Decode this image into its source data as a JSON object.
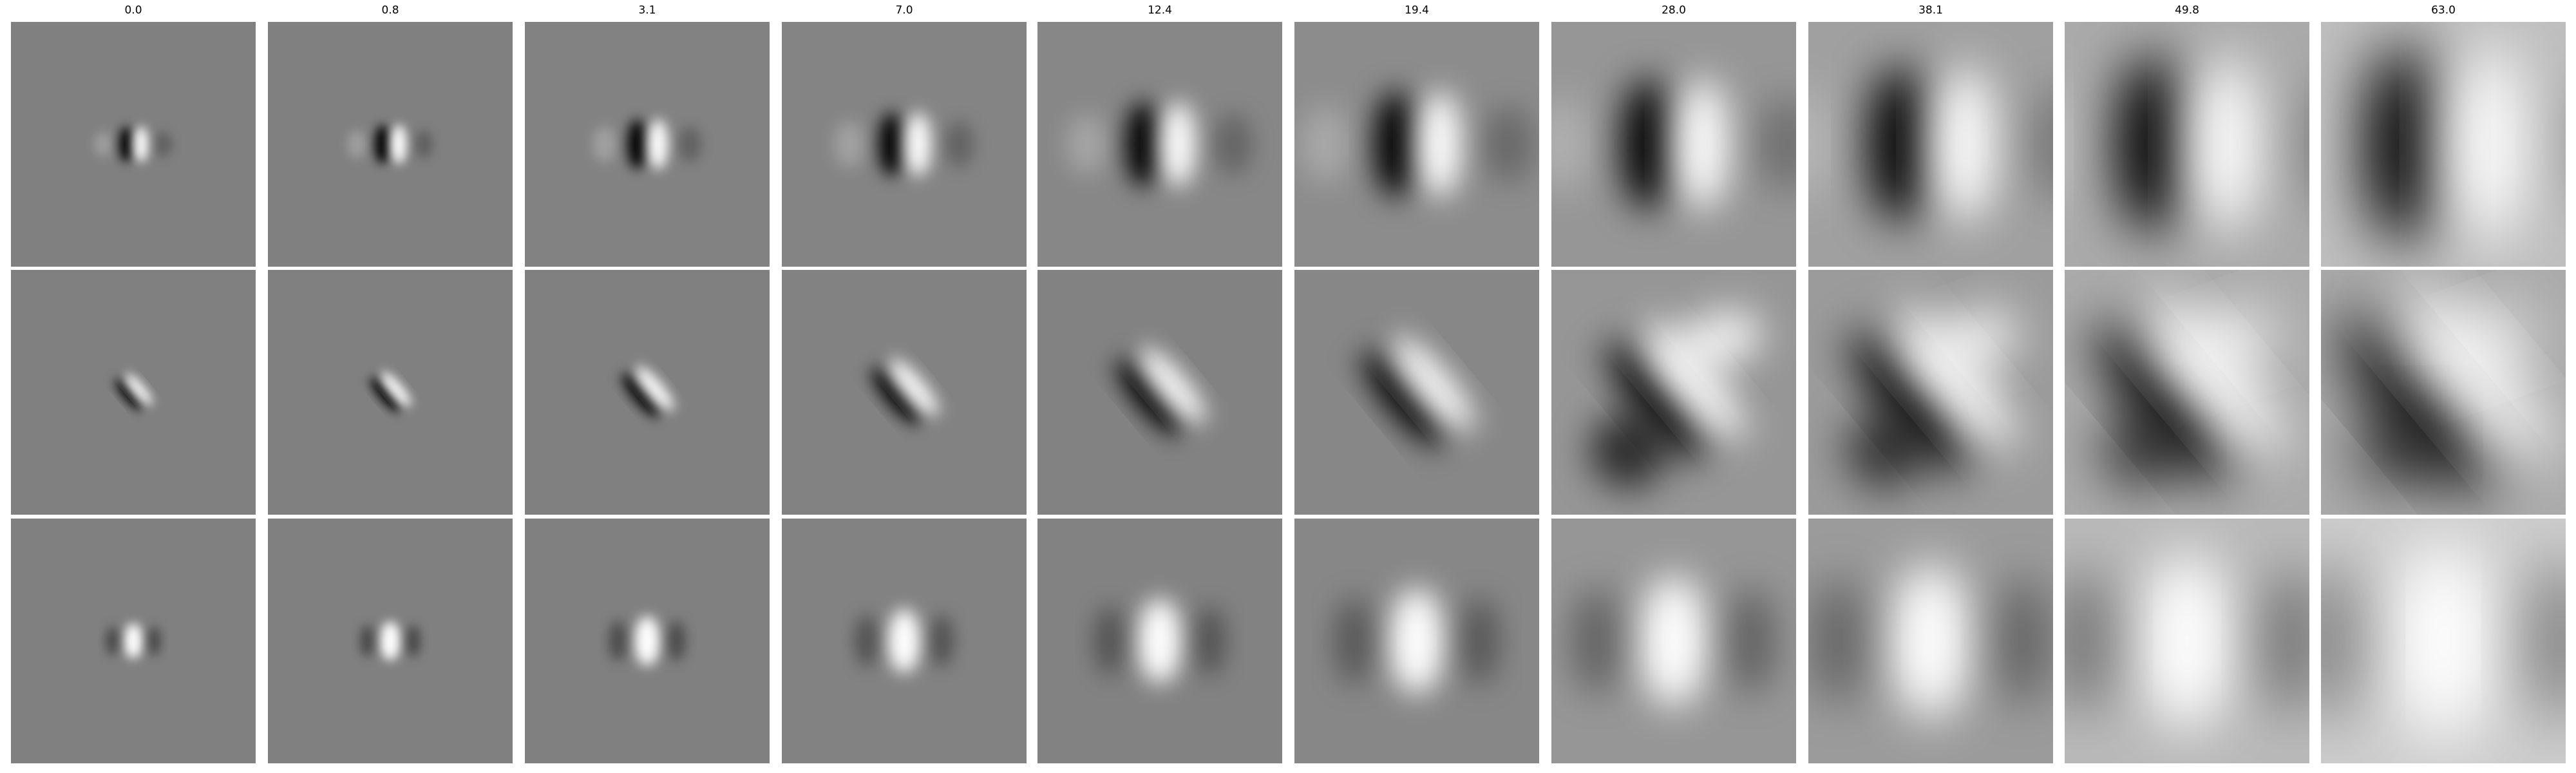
{
  "columns": [
    {
      "label": "0.0"
    },
    {
      "label": "0.8"
    },
    {
      "label": "3.1"
    },
    {
      "label": "7.0"
    },
    {
      "label": "12.4"
    },
    {
      "label": "19.4"
    },
    {
      "label": "28.0"
    },
    {
      "label": "38.1"
    },
    {
      "label": "49.8"
    },
    {
      "label": "63.0"
    }
  ],
  "rows": 3,
  "colormap": {
    "low": "#000000",
    "mid": "#808080",
    "high": "#ffffff"
  }
}
